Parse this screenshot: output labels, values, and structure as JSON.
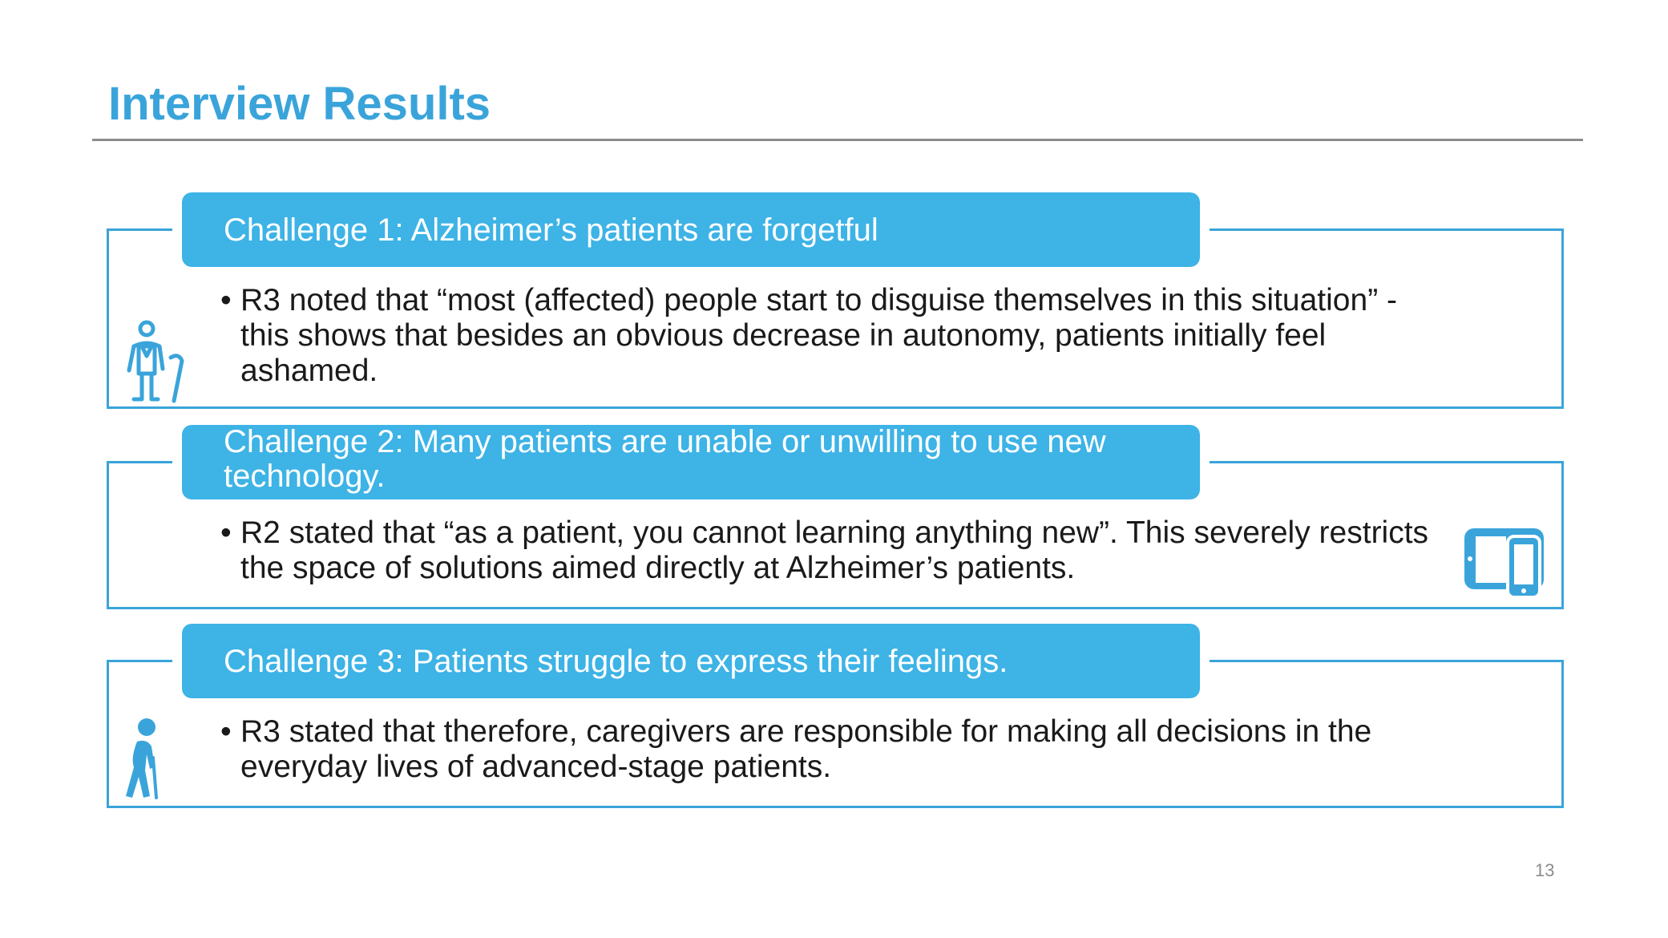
{
  "slide": {
    "title": "Interview Results",
    "page_number": "13"
  },
  "challenges": [
    {
      "header": "Challenge 1: Alzheimer’s patients are forgetful",
      "bullet": "R3 noted that “most (affected) people start to disguise themselves in this situation” - this shows that besides an obvious decrease in autonomy, patients initially feel ashamed.",
      "icon": "elderly-person-with-cane-outline-icon"
    },
    {
      "header": "Challenge 2: Many patients are unable or unwilling to use new technology.",
      "bullet": "R2 stated that “as a patient, you cannot learning anything new”. This severely restricts the space of solutions aimed directly at Alzheimer’s patients.",
      "icon": "tablet-and-phone-icon"
    },
    {
      "header": "Challenge 3: Patients struggle to express their feelings.",
      "bullet": "R3 stated that therefore, caregivers are responsible for making all decisions in the everyday lives of advanced-stage patients.",
      "icon": "elderly-person-walking-icon"
    }
  ],
  "colors": {
    "accent": "#3aa4da",
    "header_fill": "#3db3e6",
    "rule": "#8c8c8c",
    "text": "#1a1a1a"
  }
}
